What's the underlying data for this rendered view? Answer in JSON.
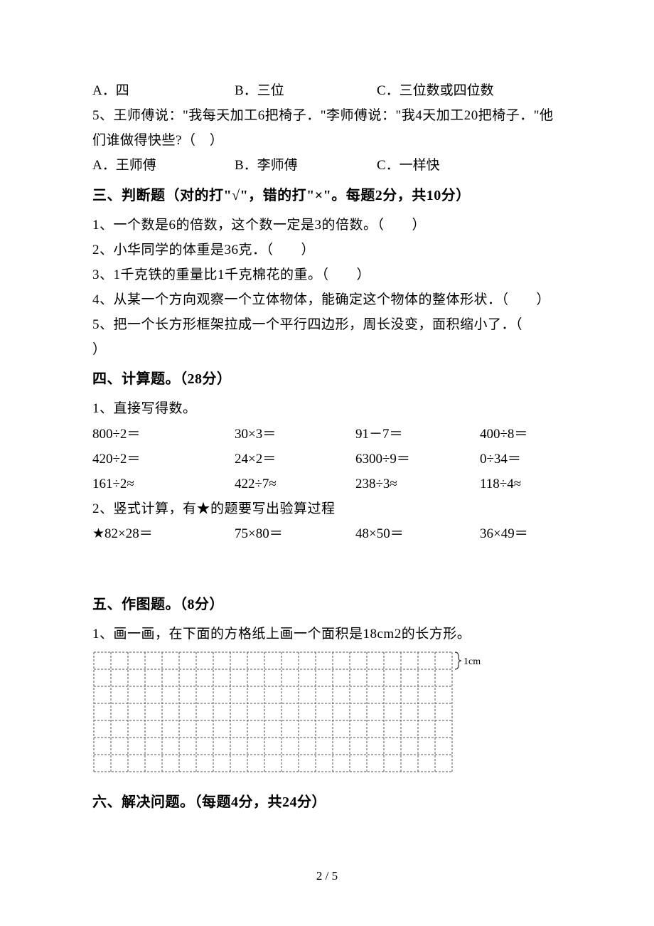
{
  "q4_options": {
    "a": "A．四",
    "b": "B．三位",
    "c": "C．三位数或四位数"
  },
  "q5": {
    "text_line1": "5、王师傅说：\"我每天加工6把椅子．\"李师傅说：\"我4天加工20把椅子．\"他",
    "text_line2": "们谁做得快些?（　）",
    "a": "A．王师傅",
    "b": "B．李师傅",
    "c": "C．一样快"
  },
  "section3": {
    "heading": "三、判断题（对的打\"√\"，错的打\"×\"。每题2分，共10分）",
    "q1": "1、一个数是6的倍数，这个数一定是3的倍数。（　　）",
    "q2": "2、小华同学的体重是36克．（　　）",
    "q3": "3、1千克铁的重量比1千克棉花的重。（　　）",
    "q4": "4、从某一个方向观察一个立体物体，能确定这个物体的整体形状．（　　）",
    "q5_line1": "5、把一个长方形框架拉成一个平行四边形，周长没变，面积缩小了．（",
    "q5_line2": "）"
  },
  "section4": {
    "heading": "四、计算题。（28分）",
    "sub1": "1、直接写得数。",
    "row1": {
      "c1": "800÷2＝",
      "c2": "30×3＝",
      "c3": "91－7＝",
      "c4": "400÷8＝"
    },
    "row2": {
      "c1": "420÷2＝",
      "c2": "24×2＝",
      "c3": "6300÷9＝",
      "c4": "0÷34＝"
    },
    "row3": {
      "c1": "161÷2≈",
      "c2": "422÷7≈",
      "c3": "238÷3≈",
      "c4": "118÷4≈"
    },
    "sub2": "2、竖式计算，有★的题要写出验算过程",
    "row4": {
      "c1": "★82×28＝",
      "c2": "75×80＝",
      "c3": "48×50＝",
      "c4": "36×49＝"
    }
  },
  "section5": {
    "heading": "五、作图题。（8分）",
    "q1": "1、画一画，在下面的方格纸上画一个面积是18cm2的长方形。",
    "grid_label": "1cm"
  },
  "section6": {
    "heading": "六、解决问题。（每题4分，共24分）"
  },
  "footer": "2 / 5",
  "grid": {
    "cols": 21,
    "rows": 7,
    "cell_size": 24,
    "stroke": "#555555",
    "dash": "3,2",
    "label_fontsize": 14,
    "brace_stroke": "#333333"
  }
}
